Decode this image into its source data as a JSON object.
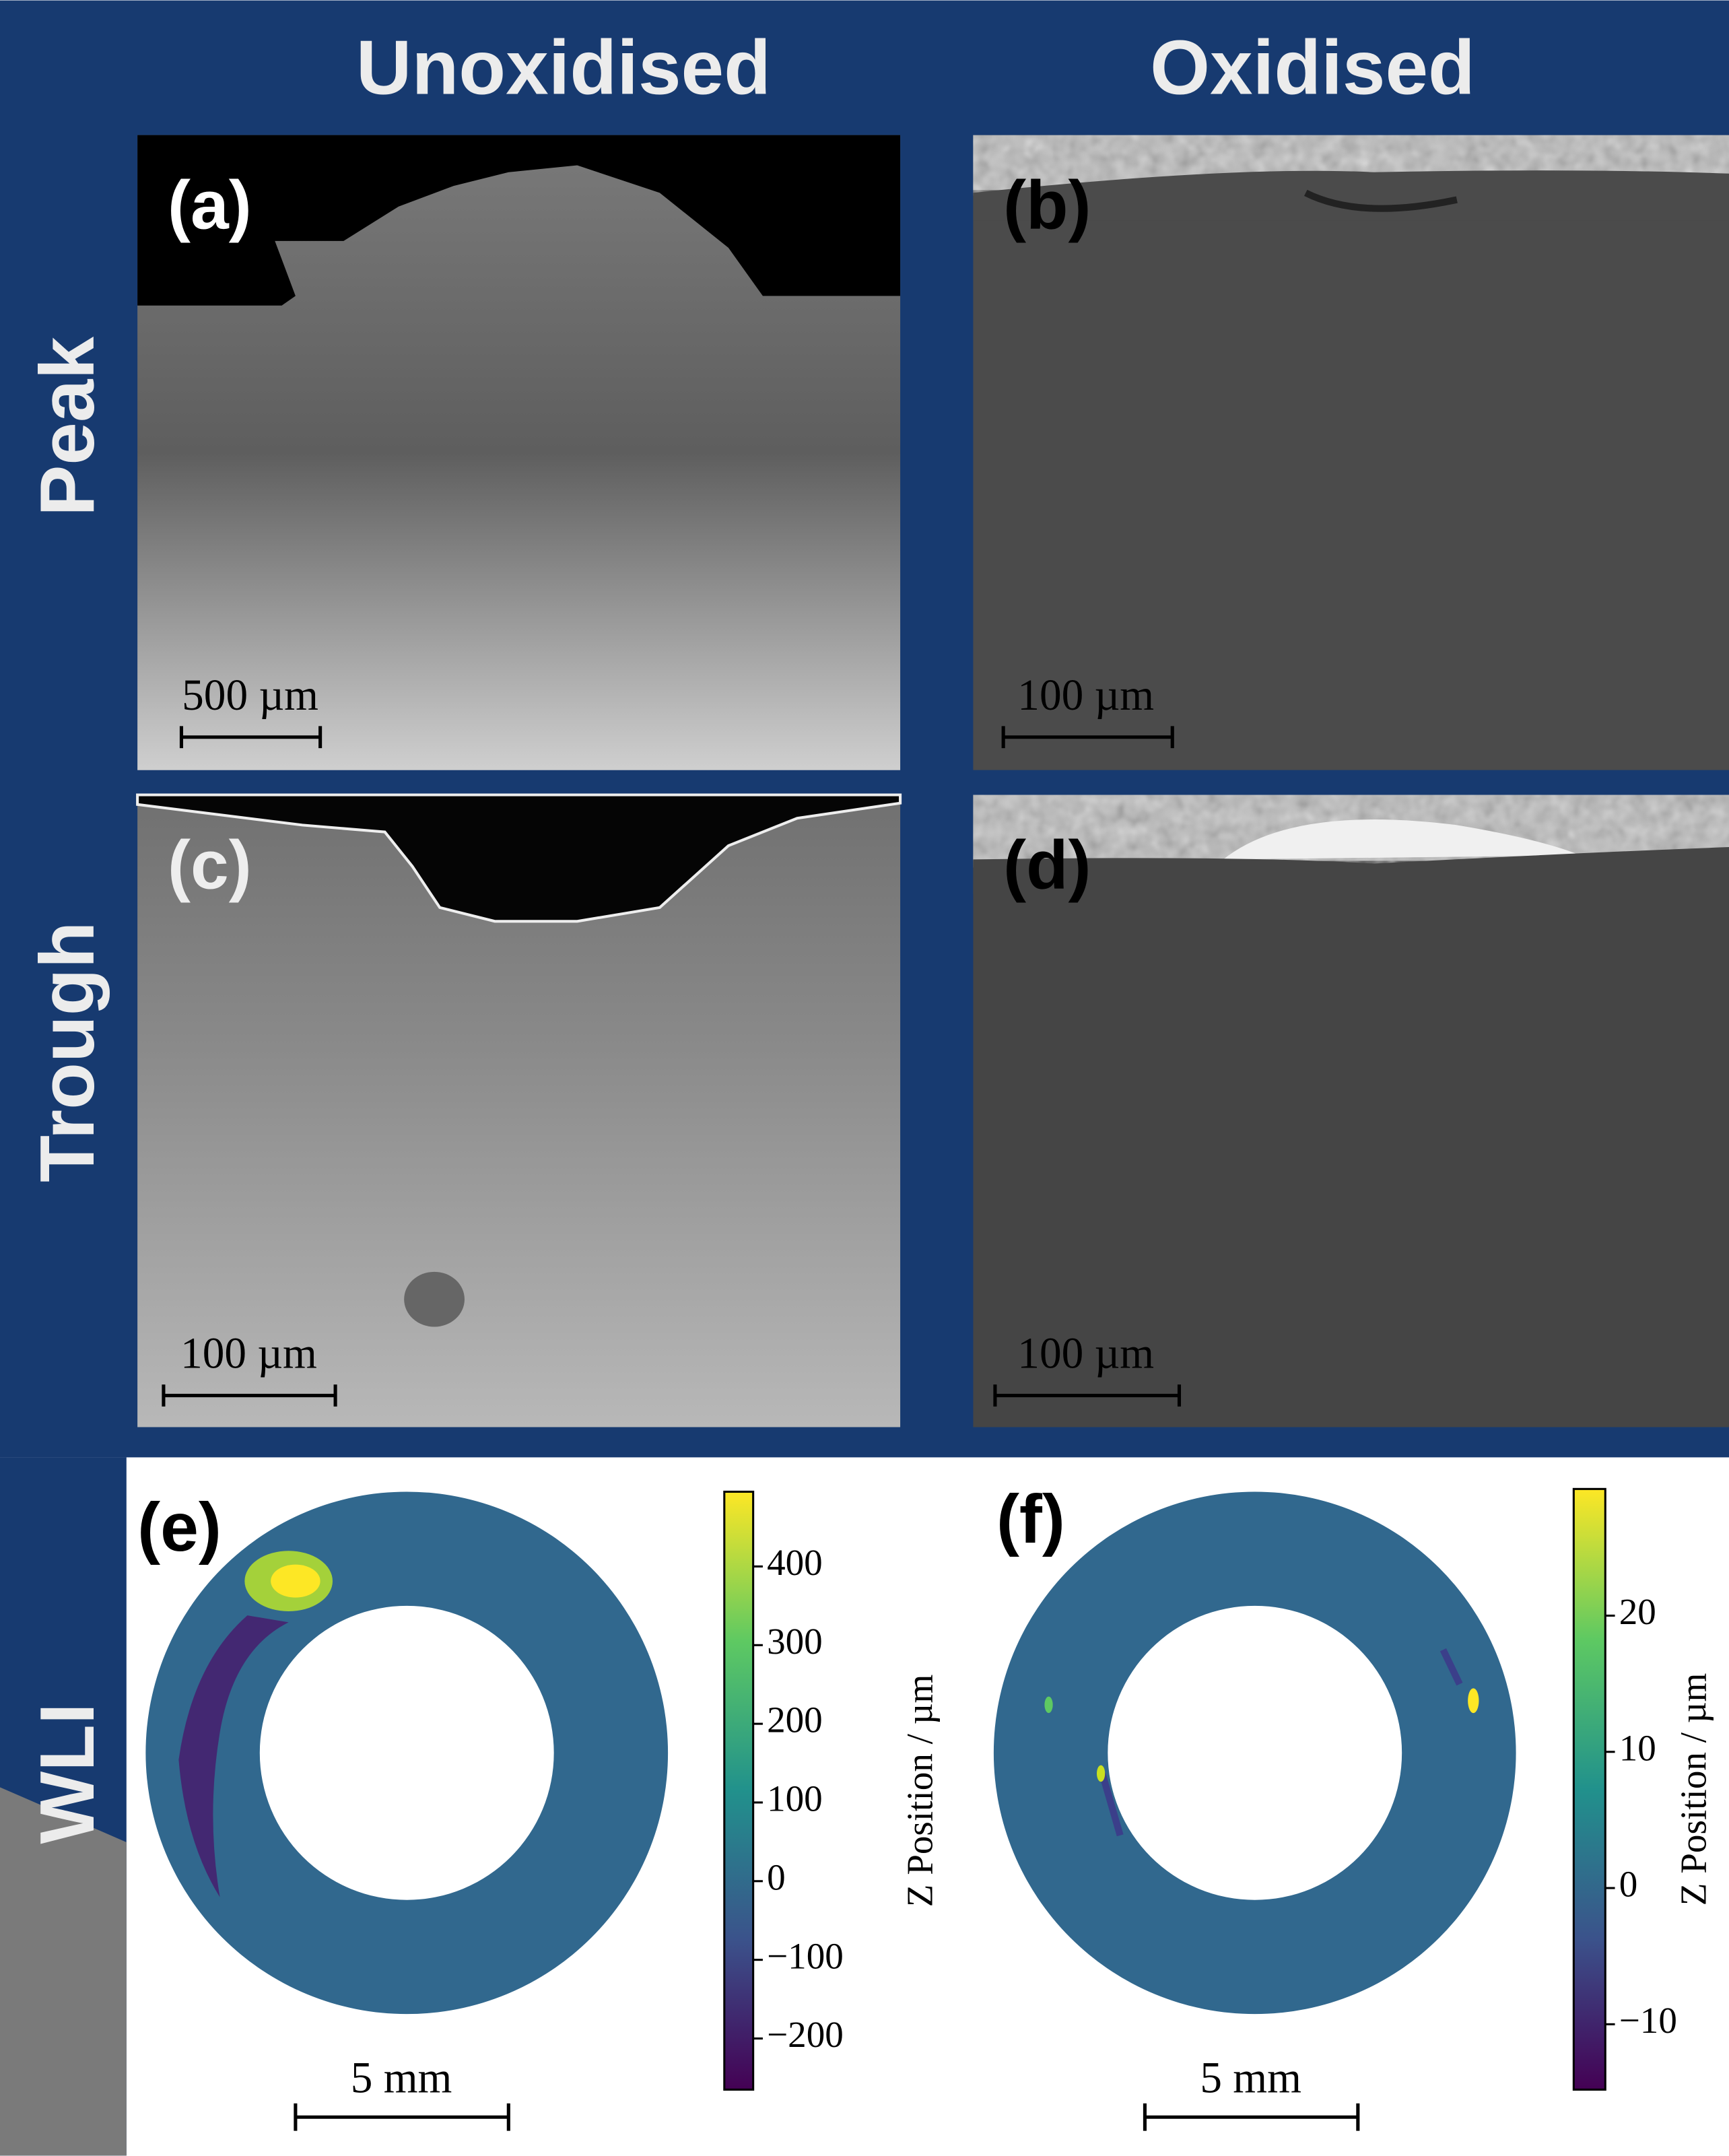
{
  "header": {
    "columns": [
      "Unoxidised",
      "Oxidised"
    ],
    "rows": [
      "Peak",
      "Trough",
      "WLI"
    ]
  },
  "panels": [
    {
      "label": "(a)",
      "scale_bar": "500 µm"
    },
    {
      "label": "(b)",
      "scale_bar": "100 µm"
    },
    {
      "label": "(c)",
      "scale_bar": "100 µm"
    },
    {
      "label": "(d)",
      "scale_bar": "100 µm"
    },
    {
      "label": "(e)",
      "scale_bar": "5 mm"
    },
    {
      "label": "(f)",
      "scale_bar": "5 mm"
    }
  ],
  "colorbars": [
    {
      "label": "Z Position / µm",
      "lim": [
        -265,
        495
      ],
      "ticks": [
        {
          "value": -200,
          "label": "−200"
        },
        {
          "value": -100,
          "label": "−100"
        },
        0,
        100,
        200,
        300,
        400
      ]
    },
    {
      "label": "Z Position / µm",
      "lim": [
        -14.8,
        29.3
      ],
      "ticks": [
        {
          "value": -10,
          "label": "−10"
        },
        0,
        10,
        20
      ]
    }
  ]
}
